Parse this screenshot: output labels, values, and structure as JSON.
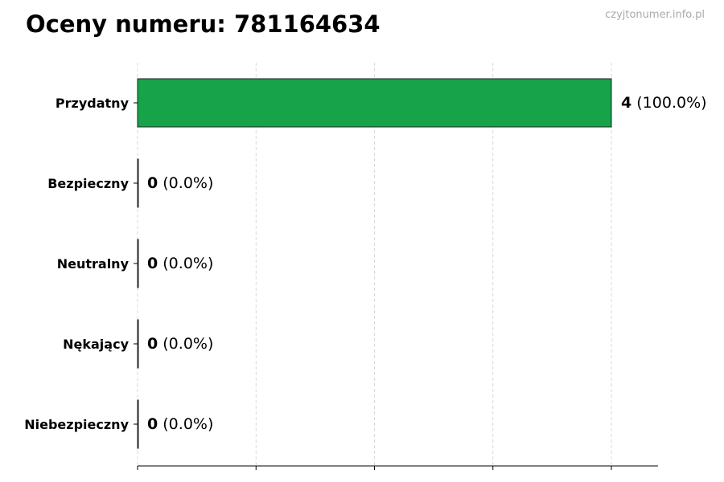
{
  "chart_data": {
    "type": "bar",
    "orientation": "horizontal",
    "title": "Oceny numeru: 781164634",
    "watermark": "czyjtonumer.info.pl",
    "categories": [
      "Przydatny",
      "Bezpieczny",
      "Neutralny",
      "Nękający",
      "Niebezpieczny"
    ],
    "values": [
      4,
      0,
      0,
      0,
      0
    ],
    "labels": [
      {
        "count": "4",
        "pct": "(100.0%)"
      },
      {
        "count": "0",
        "pct": "(0.0%)"
      },
      {
        "count": "0",
        "pct": "(0.0%)"
      },
      {
        "count": "0",
        "pct": "(0.0%)"
      },
      {
        "count": "0",
        "pct": "(0.0%)"
      }
    ],
    "colors": [
      "#16a34a",
      "#2563eb",
      "#6b7280",
      "#f59e0b",
      "#dc2626"
    ],
    "xlim": [
      0,
      4.4
    ],
    "xticks": [
      0,
      1,
      2,
      3,
      4
    ],
    "xtick_labels_shown": false,
    "grid": "vertical dashed",
    "xlabel": "",
    "ylabel": ""
  }
}
